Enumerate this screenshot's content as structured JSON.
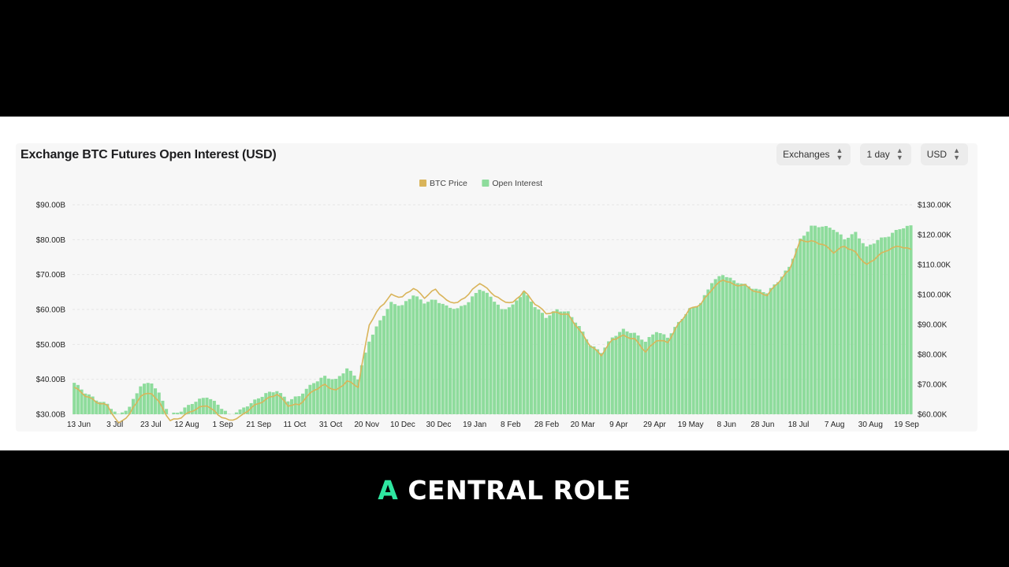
{
  "caption": {
    "accent_word": "A",
    "rest": "CENTRAL ROLE"
  },
  "controls": [
    {
      "label": "Exchanges"
    },
    {
      "label": "1 day"
    },
    {
      "label": "USD"
    }
  ],
  "colors": {
    "btc_price": "#d9b45a",
    "open_interest": "#8edc9c",
    "caption_accent": "#2ee6a0"
  },
  "chart_data": {
    "type": "bar",
    "title": "Exchange BTC Futures Open Interest (USD)",
    "legend": {
      "position": "top-center",
      "items": [
        "BTC Price",
        "Open Interest"
      ]
    },
    "x_ticks": [
      "13 Jun",
      "3 Jul",
      "23 Jul",
      "12 Aug",
      "1 Sep",
      "21 Sep",
      "11 Oct",
      "31 Oct",
      "20 Nov",
      "10 Dec",
      "30 Dec",
      "19 Jan",
      "8 Feb",
      "28 Feb",
      "20 Mar",
      "9 Apr",
      "29 Apr",
      "19 May",
      "8 Jun",
      "28 Jun",
      "18 Jul",
      "7 Aug",
      "30 Aug",
      "19 Sep"
    ],
    "y_left": {
      "ticks": [
        "$30.00B",
        "$40.00B",
        "$50.00B",
        "$60.00B",
        "$70.00B",
        "$80.00B",
        "$90.00B"
      ],
      "range": [
        30,
        90
      ]
    },
    "y_right": {
      "ticks": [
        "$60.00K",
        "$70.00K",
        "$80.00K",
        "$90.00K",
        "$100.00K",
        "$110.00K",
        "$120.00K",
        "$130.00K"
      ],
      "range": [
        60,
        130
      ]
    },
    "grid": true,
    "series": [
      {
        "name": "Open Interest",
        "axis": "left",
        "unit": "$B",
        "anchors": [
          [
            0,
            39
          ],
          [
            3,
            36
          ],
          [
            6,
            34
          ],
          [
            9,
            33
          ],
          [
            12,
            30
          ],
          [
            15,
            32
          ],
          [
            18,
            38
          ],
          [
            21,
            39
          ],
          [
            23,
            36
          ],
          [
            26,
            30
          ],
          [
            29,
            31
          ],
          [
            32,
            33
          ],
          [
            36,
            35
          ],
          [
            39,
            33
          ],
          [
            42,
            30
          ],
          [
            45,
            31
          ],
          [
            48,
            33
          ],
          [
            52,
            36
          ],
          [
            55,
            37
          ],
          [
            58,
            34
          ],
          [
            61,
            35
          ],
          [
            65,
            39
          ],
          [
            68,
            41
          ],
          [
            71,
            40
          ],
          [
            74,
            43
          ],
          [
            77,
            40
          ],
          [
            80,
            51
          ],
          [
            83,
            57
          ],
          [
            86,
            62
          ],
          [
            89,
            61
          ],
          [
            92,
            64
          ],
          [
            95,
            62
          ],
          [
            98,
            63
          ],
          [
            101,
            61
          ],
          [
            104,
            60
          ],
          [
            107,
            62
          ],
          [
            110,
            66
          ],
          [
            113,
            64
          ],
          [
            116,
            60
          ],
          [
            119,
            61
          ],
          [
            122,
            65
          ],
          [
            125,
            61
          ],
          [
            128,
            58
          ],
          [
            131,
            60
          ],
          [
            134,
            59
          ],
          [
            137,
            55
          ],
          [
            140,
            50
          ],
          [
            143,
            48
          ],
          [
            146,
            52
          ],
          [
            149,
            54
          ],
          [
            152,
            53
          ],
          [
            155,
            51
          ],
          [
            158,
            54
          ],
          [
            161,
            52
          ],
          [
            164,
            56
          ],
          [
            167,
            60
          ],
          [
            170,
            62
          ],
          [
            173,
            68
          ],
          [
            176,
            70
          ],
          [
            179,
            68
          ],
          [
            182,
            67
          ],
          [
            185,
            66
          ],
          [
            188,
            65
          ],
          [
            191,
            68
          ],
          [
            194,
            72
          ],
          [
            197,
            80
          ],
          [
            200,
            84
          ],
          [
            203,
            84
          ],
          [
            206,
            83
          ],
          [
            209,
            80
          ],
          [
            212,
            82
          ],
          [
            215,
            78
          ],
          [
            218,
            80
          ],
          [
            221,
            81
          ],
          [
            224,
            83
          ],
          [
            227,
            84
          ]
        ]
      },
      {
        "name": "BTC Price",
        "axis": "right",
        "unit": "$K",
        "anchors": [
          [
            0,
            69
          ],
          [
            3,
            66
          ],
          [
            6,
            64
          ],
          [
            9,
            63
          ],
          [
            12,
            57
          ],
          [
            15,
            60
          ],
          [
            18,
            66
          ],
          [
            21,
            67
          ],
          [
            23,
            64
          ],
          [
            26,
            58
          ],
          [
            29,
            59
          ],
          [
            32,
            61
          ],
          [
            36,
            63
          ],
          [
            39,
            60
          ],
          [
            42,
            58
          ],
          [
            45,
            59
          ],
          [
            48,
            62
          ],
          [
            52,
            65
          ],
          [
            55,
            67
          ],
          [
            58,
            63
          ],
          [
            61,
            63
          ],
          [
            65,
            68
          ],
          [
            68,
            70
          ],
          [
            71,
            68
          ],
          [
            74,
            71
          ],
          [
            77,
            69
          ],
          [
            80,
            90
          ],
          [
            83,
            96
          ],
          [
            86,
            100
          ],
          [
            89,
            99
          ],
          [
            92,
            102
          ],
          [
            95,
            99
          ],
          [
            98,
            102
          ],
          [
            101,
            98
          ],
          [
            104,
            97
          ],
          [
            107,
            100
          ],
          [
            110,
            104
          ],
          [
            113,
            101
          ],
          [
            116,
            98
          ],
          [
            119,
            97
          ],
          [
            122,
            101
          ],
          [
            125,
            97
          ],
          [
            128,
            94
          ],
          [
            131,
            94
          ],
          [
            134,
            93
          ],
          [
            137,
            88
          ],
          [
            140,
            83
          ],
          [
            143,
            80
          ],
          [
            146,
            85
          ],
          [
            149,
            86
          ],
          [
            152,
            85
          ],
          [
            155,
            81
          ],
          [
            158,
            85
          ],
          [
            161,
            84
          ],
          [
            164,
            90
          ],
          [
            167,
            95
          ],
          [
            170,
            97
          ],
          [
            173,
            102
          ],
          [
            176,
            105
          ],
          [
            179,
            103
          ],
          [
            182,
            103
          ],
          [
            185,
            101
          ],
          [
            188,
            100
          ],
          [
            191,
            104
          ],
          [
            194,
            108
          ],
          [
            197,
            118
          ],
          [
            200,
            118
          ],
          [
            203,
            117
          ],
          [
            206,
            114
          ],
          [
            209,
            116
          ],
          [
            212,
            114
          ],
          [
            215,
            110
          ],
          [
            218,
            113
          ],
          [
            221,
            115
          ],
          [
            224,
            116
          ],
          [
            227,
            115
          ]
        ]
      }
    ]
  }
}
